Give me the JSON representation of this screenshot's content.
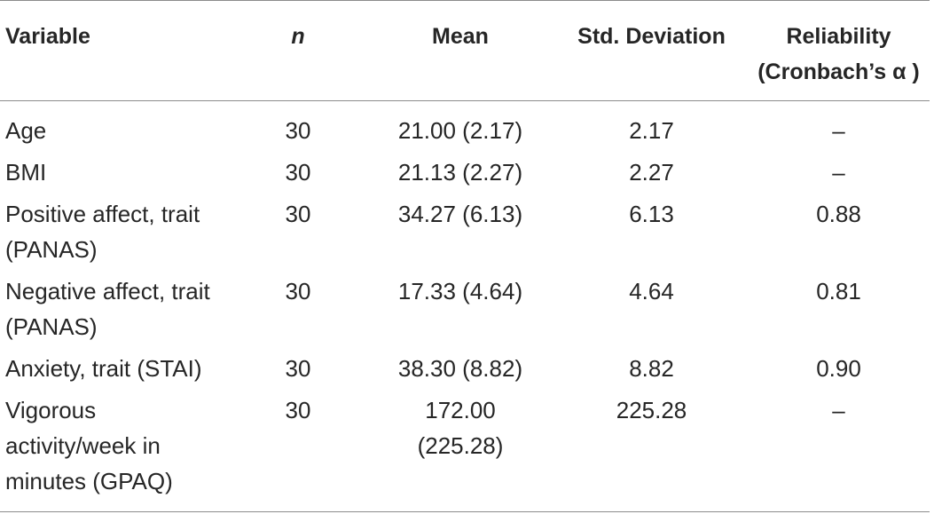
{
  "table": {
    "headers": {
      "variable": "Variable",
      "n": "n",
      "mean": "Mean",
      "std_dev": "Std. Deviation",
      "reliability_line1": "Reliability",
      "reliability_line2": "(Cronbach’s α )"
    },
    "rows": [
      {
        "variable": "Age",
        "variable_line2": "",
        "variable_line3": "",
        "n": "30",
        "mean": "21.00 (2.17)",
        "mean_line2": "",
        "std_dev": "2.17",
        "reliability": "–"
      },
      {
        "variable": "BMI",
        "variable_line2": "",
        "variable_line3": "",
        "n": "30",
        "mean": "21.13 (2.27)",
        "mean_line2": "",
        "std_dev": "2.27",
        "reliability": "–"
      },
      {
        "variable": "Positive affect, trait",
        "variable_line2": "(PANAS)",
        "variable_line3": "",
        "n": "30",
        "mean": "34.27 (6.13)",
        "mean_line2": "",
        "std_dev": "6.13",
        "reliability": "0.88"
      },
      {
        "variable": "Negative affect, trait",
        "variable_line2": "(PANAS)",
        "variable_line3": "",
        "n": "30",
        "mean": "17.33 (4.64)",
        "mean_line2": "",
        "std_dev": "4.64",
        "reliability": "0.81"
      },
      {
        "variable": "Anxiety, trait (STAI)",
        "variable_line2": "",
        "variable_line3": "",
        "n": "30",
        "mean": "38.30 (8.82)",
        "mean_line2": "",
        "std_dev": "8.82",
        "reliability": "0.90"
      },
      {
        "variable": "Vigorous",
        "variable_line2": "activity/week in",
        "variable_line3": "minutes (GPAQ)",
        "n": "30",
        "mean": "172.00",
        "mean_line2": "(225.28)",
        "std_dev": "225.28",
        "reliability": "–"
      }
    ]
  }
}
